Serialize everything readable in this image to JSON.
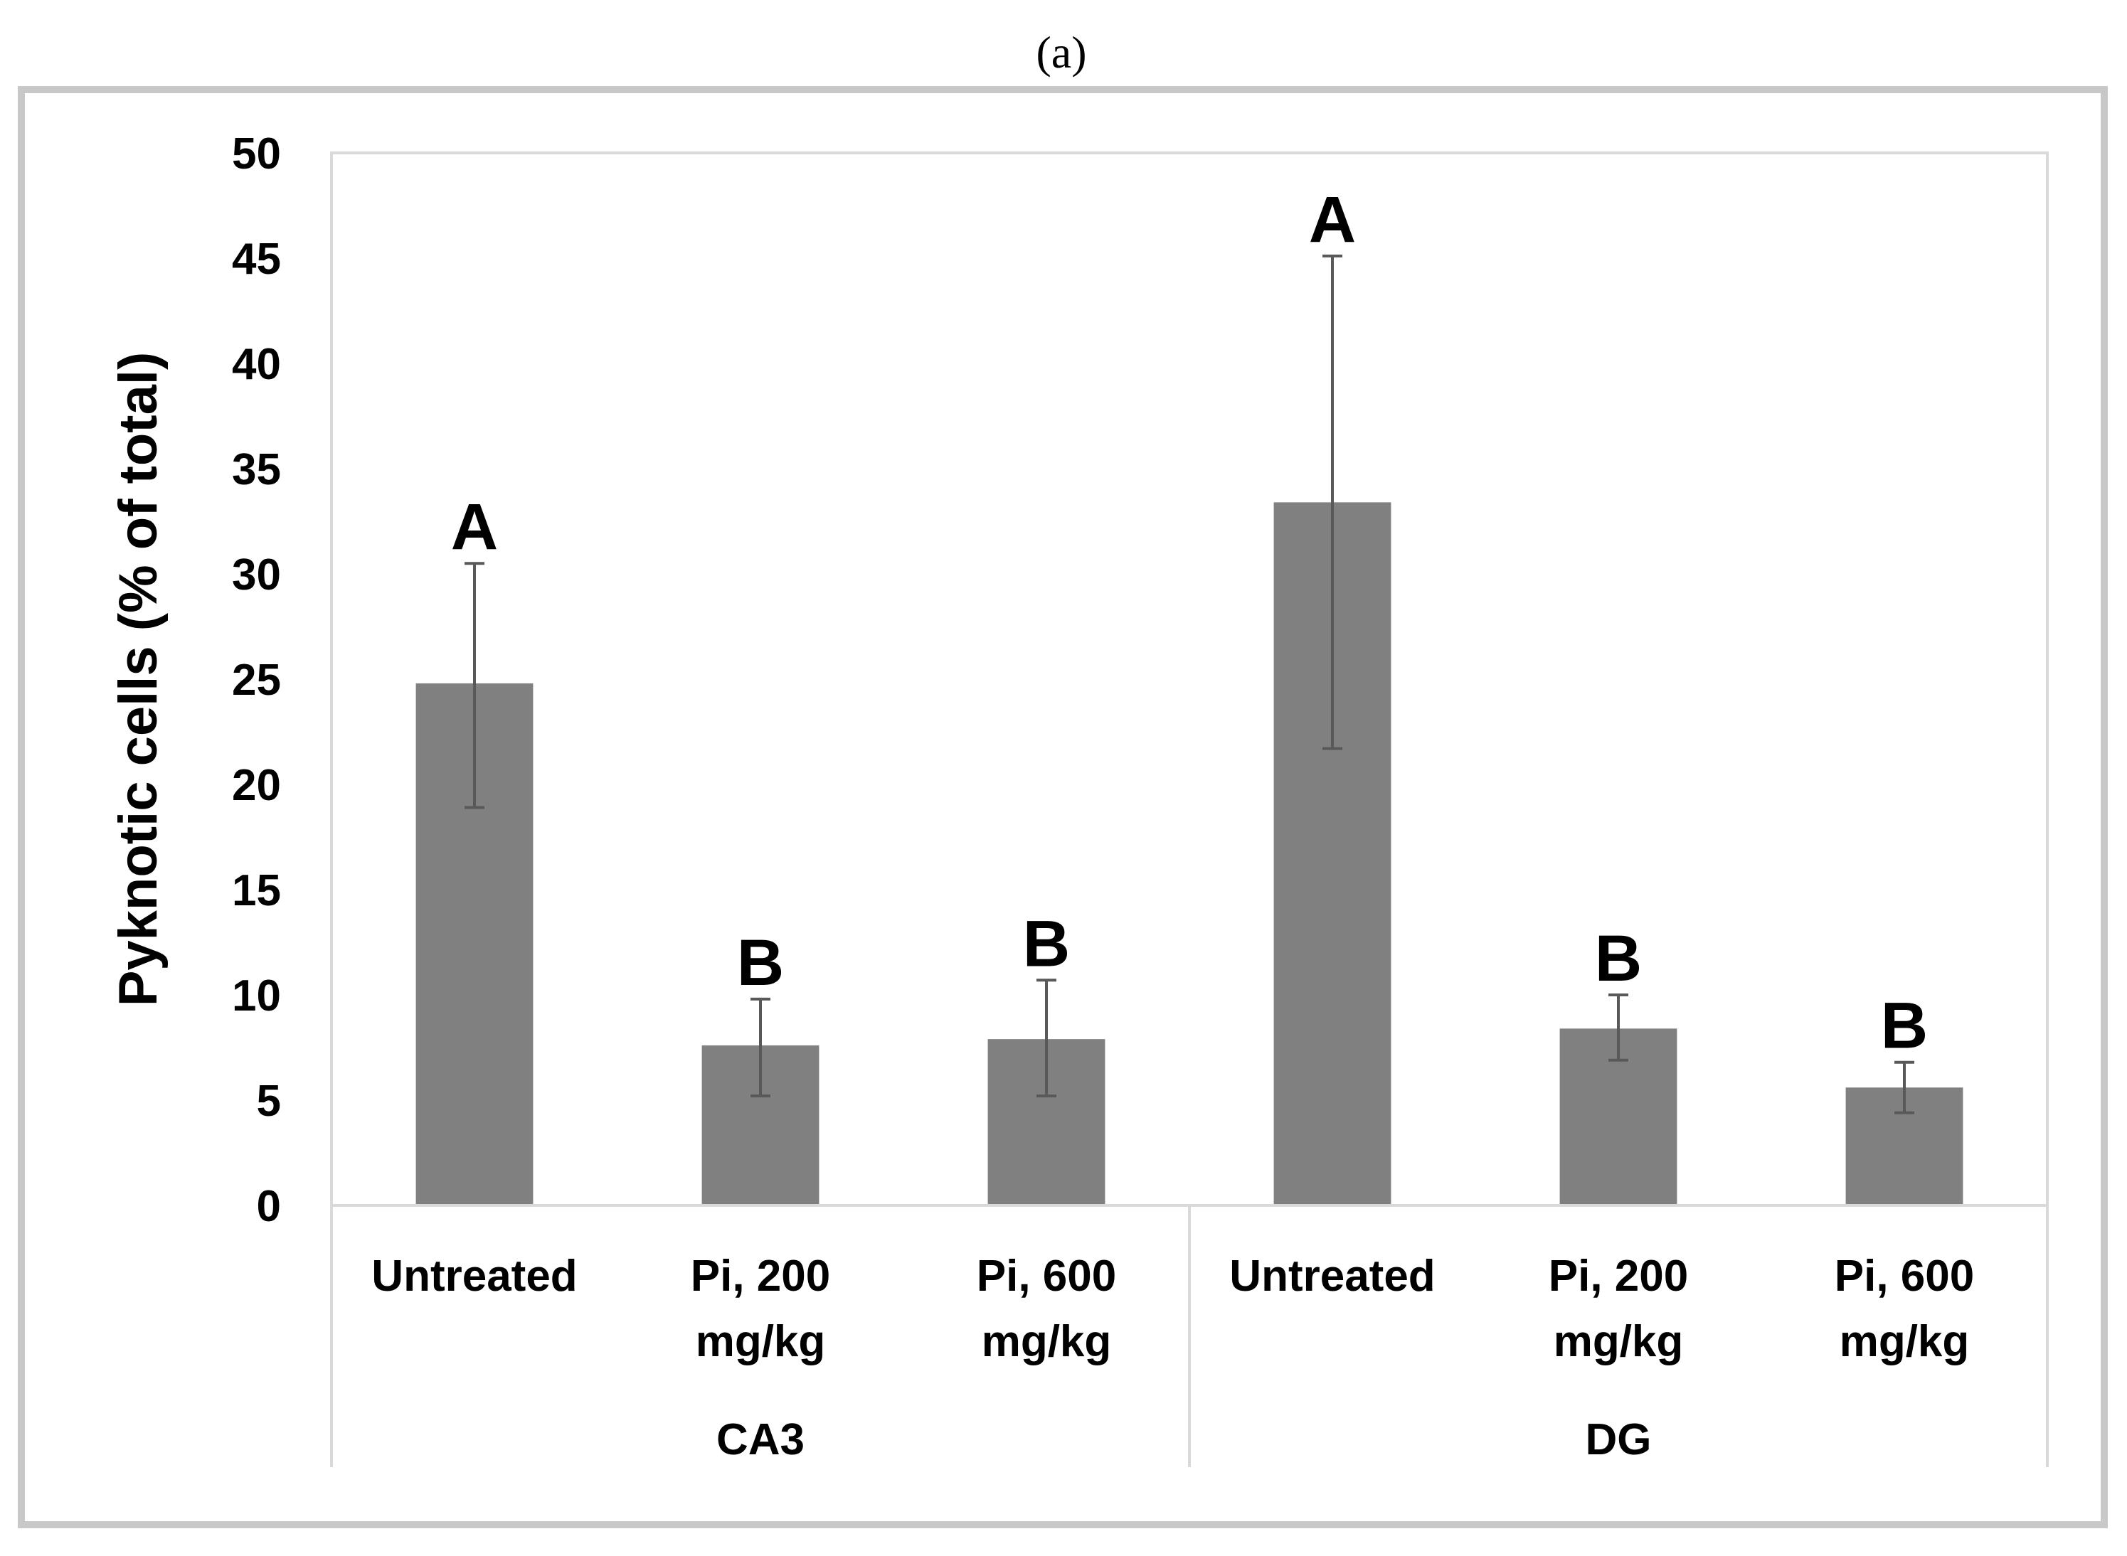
{
  "panel_label": "(a)",
  "colors": {
    "bar": "#808080",
    "error_bar": "#595959",
    "plot_border": "#d9d9d9",
    "frame_outer": "#c8c8c8",
    "grid_axis": "#d9d9d9"
  },
  "chart_data": {
    "type": "bar",
    "title": "",
    "xlabel": "",
    "ylabel": "Pyknotic cells (% of total)",
    "ylim": [
      0,
      50
    ],
    "yticks": [
      "0",
      "5",
      "10",
      "15",
      "20",
      "25",
      "30",
      "35",
      "40",
      "45",
      "50"
    ],
    "grid": false,
    "legend": "none",
    "groups": [
      {
        "name": "CA3",
        "bars": [
          {
            "label_lines": [
              "Untreated"
            ],
            "value": 24.8,
            "err_low": 18.9,
            "err_high": 30.5,
            "sig": "A"
          },
          {
            "label_lines": [
              "Pi, 200",
              "mg/kg"
            ],
            "value": 7.6,
            "err_low": 5.2,
            "err_high": 9.8,
            "sig": "B"
          },
          {
            "label_lines": [
              "Pi, 600",
              "mg/kg"
            ],
            "value": 7.9,
            "err_low": 5.2,
            "err_high": 10.7,
            "sig": "B"
          }
        ]
      },
      {
        "name": "DG",
        "bars": [
          {
            "label_lines": [
              "Untreated"
            ],
            "value": 33.4,
            "err_low": 21.7,
            "err_high": 45.1,
            "sig": "A"
          },
          {
            "label_lines": [
              "Pi, 200",
              "mg/kg"
            ],
            "value": 8.4,
            "err_low": 6.9,
            "err_high": 10.0,
            "sig": "B"
          },
          {
            "label_lines": [
              "Pi, 600",
              "mg/kg"
            ],
            "value": 5.6,
            "err_low": 4.4,
            "err_high": 6.8,
            "sig": "B"
          }
        ]
      }
    ]
  }
}
